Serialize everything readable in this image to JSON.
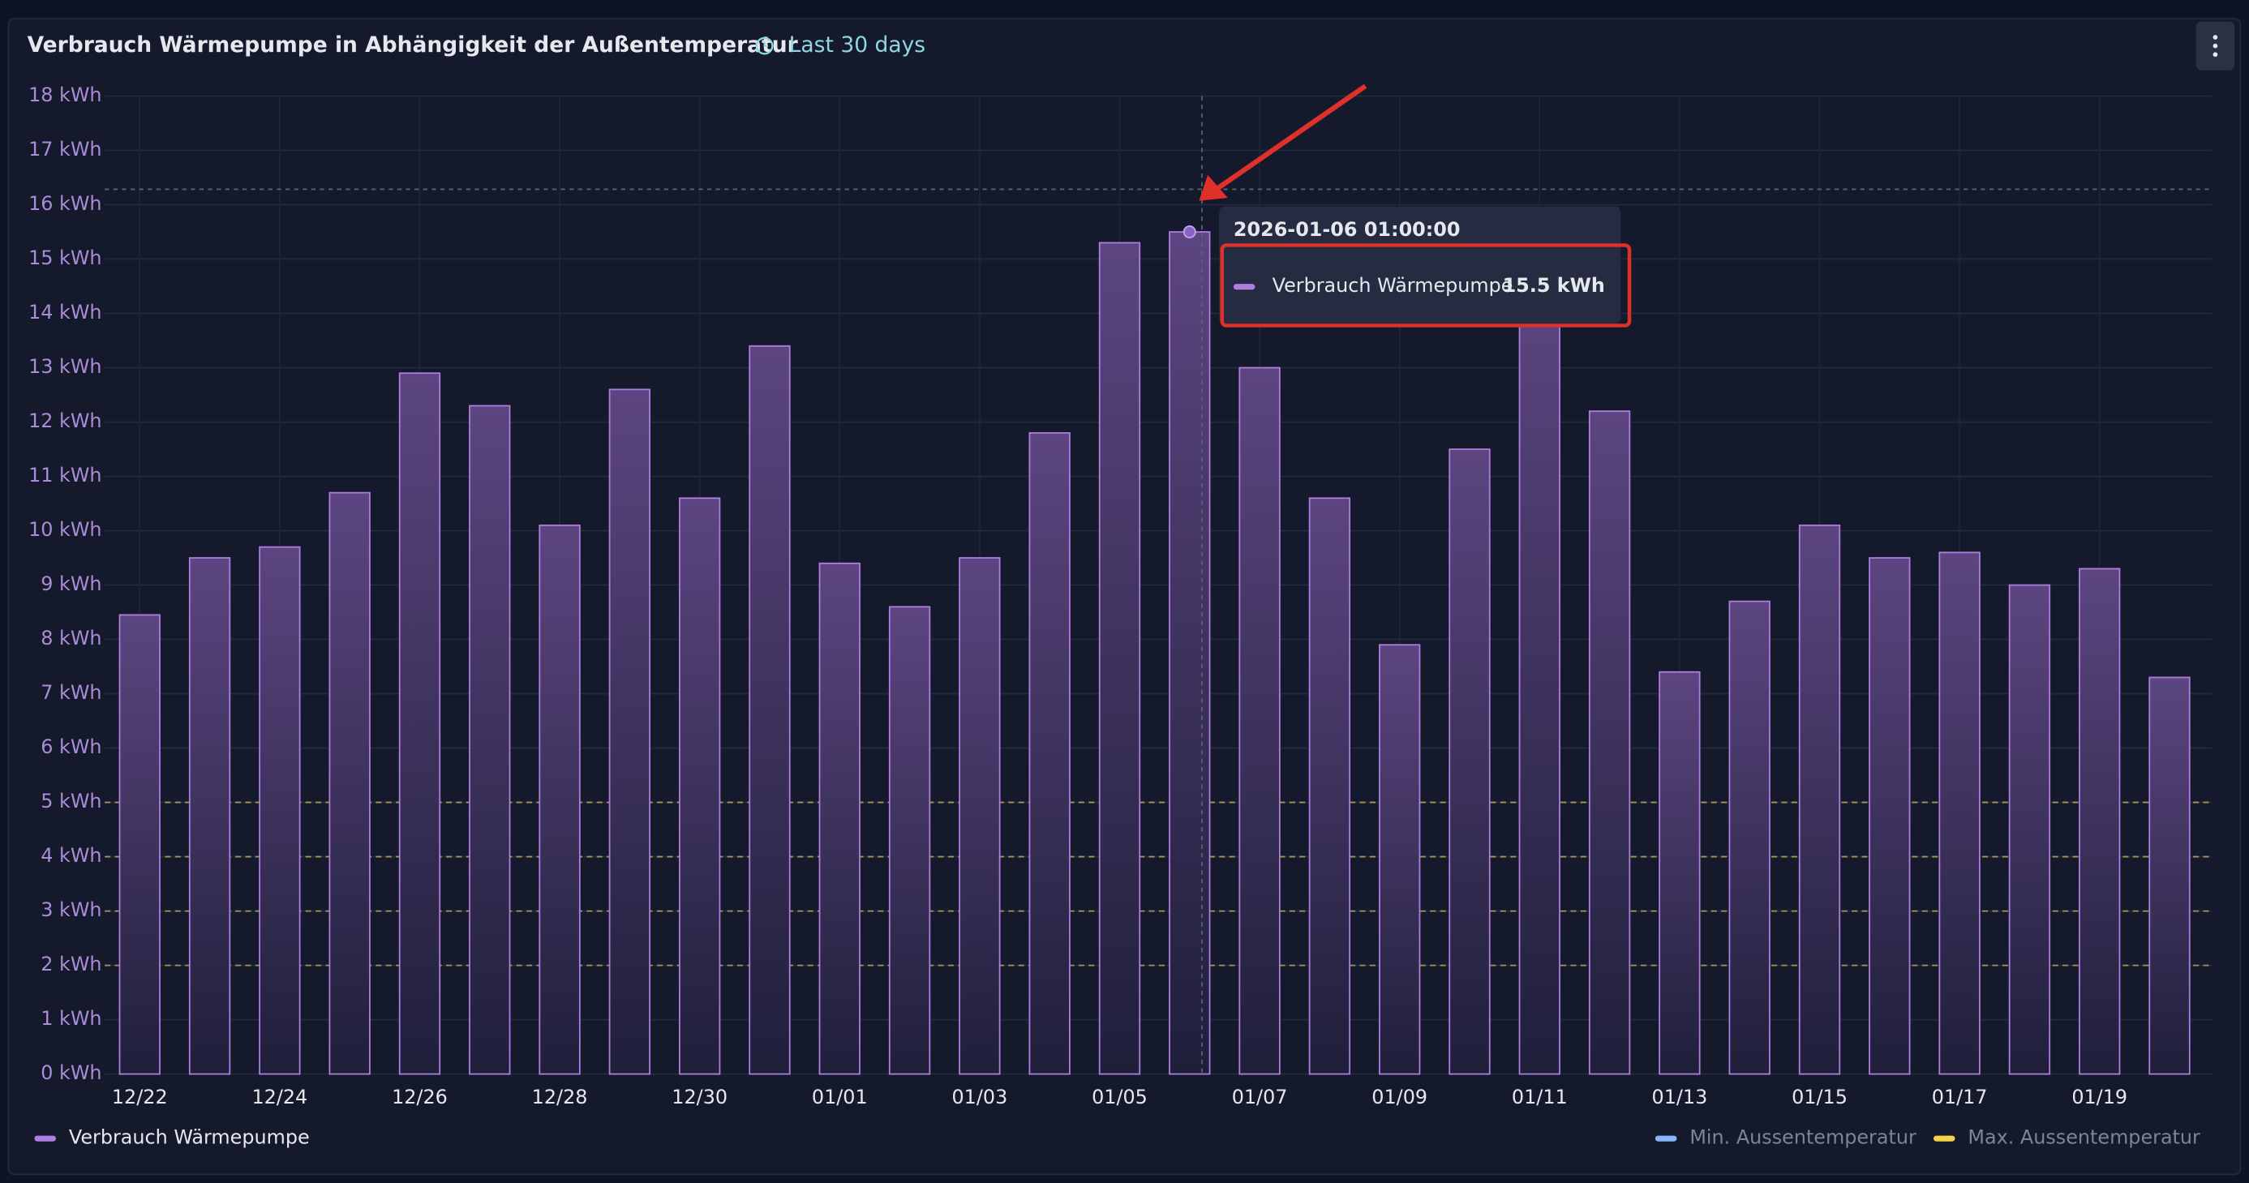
{
  "chart_data": {
    "type": "bar",
    "title": "Verbrauch Wärmepumpe in Abhängigkeit der Außentemperatur",
    "subtitle": "Last 30 days",
    "categories": [
      "12/22",
      null,
      "12/24",
      null,
      "12/26",
      null,
      "12/28",
      null,
      "12/30",
      null,
      "01/01",
      null,
      "01/03",
      null,
      "01/05",
      null,
      "01/07",
      null,
      "01/09",
      null,
      "01/11",
      null,
      "01/13",
      null,
      "01/15",
      null,
      "01/17",
      null,
      "01/19",
      null
    ],
    "series": [
      {
        "name": "Verbrauch Wärmepumpe",
        "color": "#b07ee0",
        "values": [
          8.45,
          9.5,
          9.7,
          10.7,
          12.9,
          12.3,
          10.1,
          12.6,
          10.6,
          13.4,
          9.4,
          8.6,
          9.5,
          11.8,
          15.3,
          15.5,
          13.0,
          10.6,
          7.9,
          11.5,
          14.3,
          12.2,
          7.4,
          8.7,
          10.1,
          9.5,
          9.6,
          9.0,
          9.3,
          7.3
        ]
      },
      {
        "name": "Min. Aussentemperatur",
        "color": "#8ab4f8",
        "hidden": true
      },
      {
        "name": "Max. Aussentemperatur",
        "color": "#f5d04a",
        "hidden": true
      }
    ],
    "ylim": [
      0,
      18
    ],
    "yticks": [
      {
        "value": 0,
        "label": "0 kWh"
      },
      {
        "value": 1,
        "label": "1 kWh"
      },
      {
        "value": 2,
        "label": "2 kWh"
      },
      {
        "value": 3,
        "label": "3 kWh"
      },
      {
        "value": 4,
        "label": "4 kWh"
      },
      {
        "value": 5,
        "label": "5 kWh"
      },
      {
        "value": 6,
        "label": "6 kWh"
      },
      {
        "value": 7,
        "label": "7 kWh"
      },
      {
        "value": 8,
        "label": "8 kWh"
      },
      {
        "value": 9,
        "label": "9 kWh"
      },
      {
        "value": 10,
        "label": "10 kWh"
      },
      {
        "value": 11,
        "label": "11 kWh"
      },
      {
        "value": 12,
        "label": "12 kWh"
      },
      {
        "value": 13,
        "label": "13 kWh"
      },
      {
        "value": 14,
        "label": "14 kWh"
      },
      {
        "value": 15,
        "label": "15 kWh"
      },
      {
        "value": 16,
        "label": "16 kWh"
      },
      {
        "value": 17,
        "label": "17 kWh"
      },
      {
        "value": 18,
        "label": "18 kWh"
      }
    ],
    "grid": true,
    "reference_lines": {
      "color": "#c9b35a",
      "values": [
        2,
        3,
        4,
        5
      ]
    },
    "tooltip": {
      "title": "2026-01-06 01:00:00",
      "index": 15,
      "value": 15.5,
      "value_label": "15.5 kWh"
    }
  }
}
